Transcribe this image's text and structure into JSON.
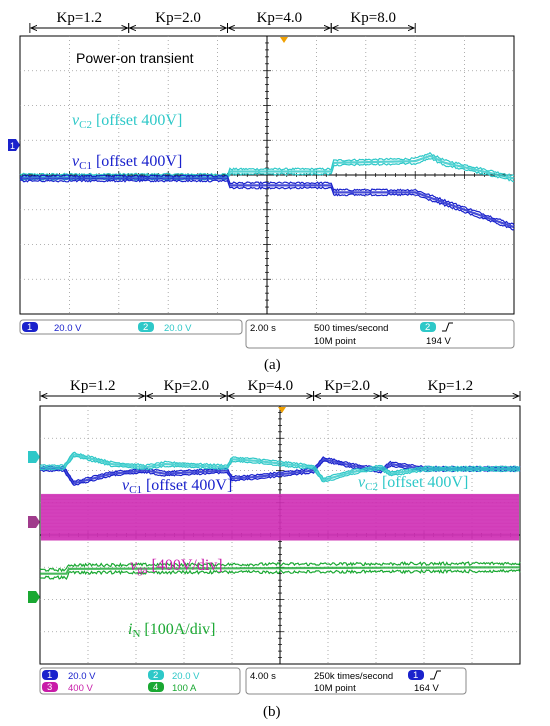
{
  "chart_data": [
    {
      "type": "line",
      "panel_label": "(a)",
      "annotation": "Power-on transient",
      "x_divisions": 10,
      "y_divisions": 8,
      "segments": [
        {
          "label": "Kp=1.2",
          "start": 0.2,
          "end": 2.2
        },
        {
          "label": "Kp=2.0",
          "start": 2.2,
          "end": 4.2
        },
        {
          "label": "Kp=4.0",
          "start": 4.2,
          "end": 6.3
        },
        {
          "label": "Kp=8.0",
          "start": 6.3,
          "end": 8.0
        }
      ],
      "series": [
        {
          "name": "vC2 [offset 400V]",
          "label_main": "v",
          "label_sub": "C2",
          "label_rest": " [offset 400V]",
          "color": "#2ec8c8",
          "noise": 0.07,
          "points": [
            [
              0,
              -0.05
            ],
            [
              4.2,
              -0.05
            ],
            [
              4.25,
              0.1
            ],
            [
              6.3,
              0.1
            ],
            [
              6.35,
              0.35
            ],
            [
              8.0,
              0.4
            ],
            [
              8.3,
              0.55
            ],
            [
              8.6,
              0.35
            ],
            [
              10,
              -0.1
            ]
          ]
        },
        {
          "name": "vC1 [offset 400V]",
          "label_main": "v",
          "label_sub": "C1",
          "label_rest": " [offset 400V]",
          "color": "#1a22cc",
          "noise": 0.07,
          "points": [
            [
              0,
              -0.1
            ],
            [
              4.2,
              -0.1
            ],
            [
              4.25,
              -0.3
            ],
            [
              6.3,
              -0.3
            ],
            [
              6.35,
              -0.5
            ],
            [
              8.0,
              -0.5
            ],
            [
              10,
              -1.5
            ]
          ]
        }
      ],
      "status": {
        "ch1": "20.0 V",
        "ch2": "20.0 V",
        "timebase": "2.00 s",
        "rate": "500 times/second",
        "points": "10M point",
        "trigger_channel": "2",
        "trigger_level": "194 V"
      }
    },
    {
      "type": "line",
      "panel_label": "(b)",
      "x_divisions": 10,
      "y_divisions": 8,
      "segments": [
        {
          "label": "Kp=1.2",
          "start": 0.0,
          "end": 2.2
        },
        {
          "label": "Kp=2.0",
          "start": 2.2,
          "end": 3.9
        },
        {
          "label": "Kp=4.0",
          "start": 3.9,
          "end": 5.7
        },
        {
          "label": "Kp=2.0",
          "start": 5.7,
          "end": 7.1
        },
        {
          "label": "Kp=1.2",
          "start": 7.1,
          "end": 10.0
        }
      ],
      "series": [
        {
          "name": "vC1 [offset 400V]",
          "label_main": "v",
          "label_sub": "C1",
          "label_rest": " [offset 400V]",
          "color": "#1a22cc",
          "noise": 0.06,
          "points": [
            [
              0,
              2.05
            ],
            [
              0.5,
              2.05
            ],
            [
              0.7,
              1.6
            ],
            [
              1.5,
              1.9
            ],
            [
              2.2,
              2.0
            ],
            [
              2.6,
              1.9
            ],
            [
              3.9,
              2.0
            ],
            [
              4.0,
              1.75
            ],
            [
              4.5,
              1.8
            ],
            [
              5.7,
              2.0
            ],
            [
              5.9,
              2.35
            ],
            [
              6.5,
              2.15
            ],
            [
              7.1,
              2.0
            ],
            [
              7.3,
              2.2
            ],
            [
              8.0,
              2.05
            ],
            [
              10,
              2.05
            ]
          ]
        },
        {
          "name": "vC2 [offset 400V]",
          "label_main": "v",
          "label_sub": "C2",
          "label_rest": " [offset 400V]",
          "color": "#2ec8c8",
          "noise": 0.06,
          "points": [
            [
              0,
              2.1
            ],
            [
              0.5,
              2.1
            ],
            [
              0.7,
              2.5
            ],
            [
              1.5,
              2.2
            ],
            [
              2.2,
              2.1
            ],
            [
              2.6,
              2.2
            ],
            [
              3.9,
              2.1
            ],
            [
              4.0,
              2.35
            ],
            [
              4.5,
              2.3
            ],
            [
              5.7,
              2.1
            ],
            [
              5.9,
              1.7
            ],
            [
              6.5,
              1.95
            ],
            [
              7.1,
              2.1
            ],
            [
              7.3,
              1.9
            ],
            [
              8.0,
              2.05
            ],
            [
              10,
              2.05
            ]
          ]
        },
        {
          "name": "vga [400V/div]",
          "label_main": "v",
          "label_sub": "ga",
          "label_rest": " [400V/div]",
          "color": "#c81ca8",
          "band_center": 0.55,
          "band_half": 0.72
        },
        {
          "name": "iN [100A/div]",
          "label_main": "i",
          "label_sub": "N",
          "label_rest": " [100A/div]",
          "color": "#1aa832",
          "noise": 0.12,
          "points": [
            [
              0,
              -1.2
            ],
            [
              0.55,
              -1.2
            ],
            [
              0.6,
              -1.05
            ],
            [
              10,
              -1.0
            ]
          ]
        }
      ],
      "status": {
        "ch1": "20.0 V",
        "ch2": "20.0 V",
        "ch3": "400 V",
        "ch4": "100 A",
        "timebase": "4.00 s",
        "rate": "250k times/second",
        "points": "10M point",
        "trigger_channel": "1",
        "trigger_level": "164 V"
      }
    }
  ]
}
